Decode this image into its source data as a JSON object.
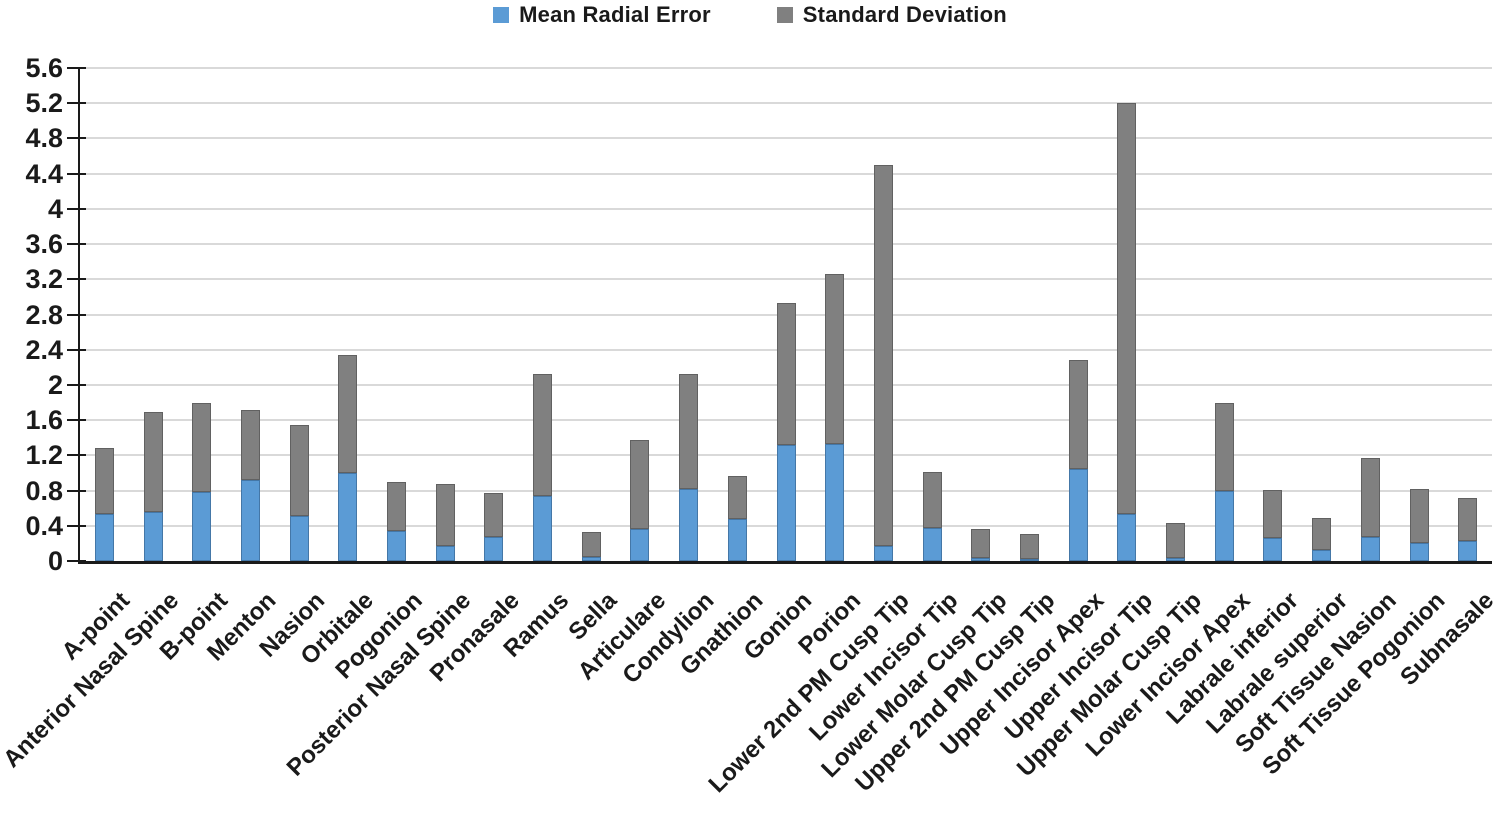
{
  "chart_data": {
    "type": "bar",
    "stacked": true,
    "title": "",
    "xlabel": "",
    "ylabel": "",
    "ylim": [
      0,
      5.6
    ],
    "ytick_step": 0.4,
    "yticks": [
      "0",
      "0.4",
      "0.8",
      "1.2",
      "1.6",
      "2",
      "2.4",
      "2.8",
      "3.2",
      "3.6",
      "4",
      "4.4",
      "4.8",
      "5.2",
      "5.6"
    ],
    "grid": true,
    "legend_position": "top-center",
    "colors": {
      "axis": "#1a1a1a",
      "gridline": "#d9d9d9",
      "mean_radial_error": "#5b9bd5",
      "standard_deviation": "#808080"
    },
    "categories": [
      "A-point",
      "Anterior Nasal Spine",
      "B-point",
      "Menton",
      "Nasion",
      "Orbitale",
      "Pogonion",
      "Posterior Nasal Spine",
      "Pronasale",
      "Ramus",
      "Sella",
      "Articulare",
      "Condylion",
      "Gnathion",
      "Gonion",
      "Porion",
      "Lower 2nd PM Cusp Tip",
      "Lower Incisor Tip",
      "Lower Molar Cusp Tip",
      "Upper 2nd PM Cusp Tip",
      "Upper Incisor Apex",
      "Upper Incisor Tip",
      "Upper Molar Cusp Tip",
      "Lower Incisor Apex",
      "Labrale inferior",
      "Labrale superior",
      "Soft Tissue Nasion",
      "Soft Tissue Pogonion",
      "Subnasale"
    ],
    "series": [
      {
        "name": "Mean Radial Error",
        "color": "#5b9bd5",
        "values": [
          0.54,
          0.56,
          0.79,
          0.92,
          0.51,
          1.0,
          0.34,
          0.17,
          0.27,
          0.74,
          0.05,
          0.36,
          0.82,
          0.48,
          1.32,
          1.33,
          0.17,
          0.38,
          0.03,
          0.02,
          1.04,
          0.53,
          0.03,
          0.8,
          0.26,
          0.13,
          0.27,
          0.2,
          0.23
        ]
      },
      {
        "name": "Standard Deviation",
        "color": "#808080",
        "values": [
          0.75,
          1.13,
          1.01,
          0.8,
          1.04,
          1.34,
          0.56,
          0.71,
          0.5,
          1.38,
          0.28,
          1.01,
          1.31,
          0.49,
          1.61,
          1.93,
          4.33,
          0.63,
          0.34,
          0.29,
          1.24,
          4.67,
          0.4,
          1.0,
          0.55,
          0.36,
          0.9,
          0.62,
          0.49
        ]
      }
    ]
  }
}
